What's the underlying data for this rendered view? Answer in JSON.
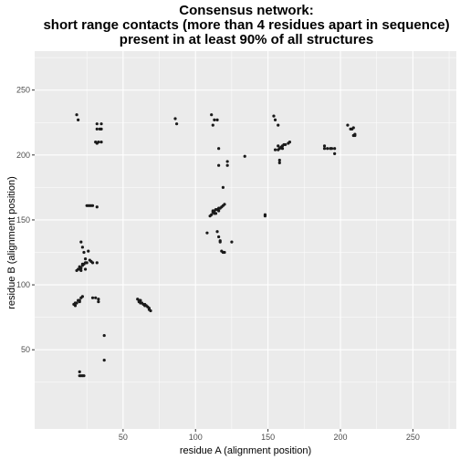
{
  "chart_data": {
    "type": "scatter",
    "title": [
      "Consensus network:",
      "short range contacts (more than 4 residues apart in sequence)",
      "present in at least 90% of all structures"
    ],
    "xlabel": "residue A (alignment position)",
    "ylabel": "residue B (alignment position)",
    "xlim": [
      -11,
      280
    ],
    "ylim": [
      -11,
      280
    ],
    "x_ticks": [
      50,
      100,
      150,
      200,
      250
    ],
    "y_ticks": [
      50,
      100,
      150,
      200,
      250
    ],
    "grid": true,
    "colors": {
      "panel": "#ebebeb",
      "grid": "#ffffff",
      "point": "#1a1a1a"
    },
    "points": [
      [
        18,
        231
      ],
      [
        19,
        227
      ],
      [
        32,
        224
      ],
      [
        35,
        224
      ],
      [
        32,
        220
      ],
      [
        34,
        220
      ],
      [
        35,
        220
      ],
      [
        31,
        210
      ],
      [
        32,
        209
      ],
      [
        33,
        210
      ],
      [
        35,
        210
      ],
      [
        86,
        228
      ],
      [
        87,
        224
      ],
      [
        111,
        231
      ],
      [
        113,
        227
      ],
      [
        112,
        223
      ],
      [
        115,
        227
      ],
      [
        116,
        205
      ],
      [
        116,
        192
      ],
      [
        122,
        195
      ],
      [
        122,
        192
      ],
      [
        134,
        199
      ],
      [
        119,
        175
      ],
      [
        154,
        230
      ],
      [
        155,
        227
      ],
      [
        157,
        223
      ],
      [
        155,
        204
      ],
      [
        157,
        204
      ],
      [
        158,
        205
      ],
      [
        159,
        206
      ],
      [
        160,
        207
      ],
      [
        161,
        208
      ],
      [
        162,
        208
      ],
      [
        164,
        209
      ],
      [
        165,
        210
      ],
      [
        158,
        196
      ],
      [
        158,
        194
      ],
      [
        157,
        207
      ],
      [
        160,
        205
      ],
      [
        189,
        207
      ],
      [
        189,
        205
      ],
      [
        191,
        205
      ],
      [
        193,
        205
      ],
      [
        194,
        205
      ],
      [
        196,
        205
      ],
      [
        196,
        201
      ],
      [
        205,
        223
      ],
      [
        207,
        220
      ],
      [
        208,
        220
      ],
      [
        209,
        221
      ],
      [
        210,
        216
      ],
      [
        209,
        215
      ],
      [
        210,
        215
      ],
      [
        25,
        161
      ],
      [
        26,
        161
      ],
      [
        27,
        161
      ],
      [
        28,
        161
      ],
      [
        29,
        161
      ],
      [
        32,
        160
      ],
      [
        19,
        112
      ],
      [
        20,
        112
      ],
      [
        20,
        114
      ],
      [
        21,
        113
      ],
      [
        21,
        111
      ],
      [
        22,
        115
      ],
      [
        22,
        116
      ],
      [
        23,
        116
      ],
      [
        24,
        117
      ],
      [
        25,
        117
      ],
      [
        24,
        112
      ],
      [
        18,
        111
      ],
      [
        21,
        133
      ],
      [
        22,
        129
      ],
      [
        23,
        125
      ],
      [
        26,
        126
      ],
      [
        24,
        120
      ],
      [
        27,
        119
      ],
      [
        28,
        118
      ],
      [
        29,
        117
      ],
      [
        32,
        117
      ],
      [
        16,
        85
      ],
      [
        17,
        86
      ],
      [
        17,
        84
      ],
      [
        18,
        86
      ],
      [
        19,
        88
      ],
      [
        20,
        88
      ],
      [
        21,
        90
      ],
      [
        22,
        91
      ],
      [
        20,
        87
      ],
      [
        29,
        90
      ],
      [
        31,
        90
      ],
      [
        33,
        89
      ],
      [
        33,
        87
      ],
      [
        37,
        61
      ],
      [
        37,
        42
      ],
      [
        20,
        33
      ],
      [
        20,
        30
      ],
      [
        21,
        30
      ],
      [
        22,
        30
      ],
      [
        23,
        30
      ],
      [
        60,
        89
      ],
      [
        61,
        88
      ],
      [
        61,
        87
      ],
      [
        62,
        86
      ],
      [
        63,
        86
      ],
      [
        64,
        85
      ],
      [
        65,
        84
      ],
      [
        66,
        84
      ],
      [
        67,
        83
      ],
      [
        68,
        82
      ],
      [
        68,
        81
      ],
      [
        69,
        80
      ],
      [
        65,
        85
      ],
      [
        62,
        88
      ],
      [
        110,
        153
      ],
      [
        111,
        154
      ],
      [
        112,
        156
      ],
      [
        113,
        155
      ],
      [
        113,
        157
      ],
      [
        114,
        158
      ],
      [
        115,
        158
      ],
      [
        116,
        159
      ],
      [
        117,
        159
      ],
      [
        118,
        160
      ],
      [
        119,
        161
      ],
      [
        120,
        162
      ],
      [
        112,
        157
      ],
      [
        114,
        155
      ],
      [
        116,
        157
      ],
      [
        115,
        141
      ],
      [
        116,
        137
      ],
      [
        117,
        134
      ],
      [
        117,
        133
      ],
      [
        118,
        126
      ],
      [
        119,
        125
      ],
      [
        120,
        125
      ],
      [
        108,
        140
      ],
      [
        125,
        133
      ],
      [
        148,
        154
      ],
      [
        148,
        153
      ]
    ]
  }
}
